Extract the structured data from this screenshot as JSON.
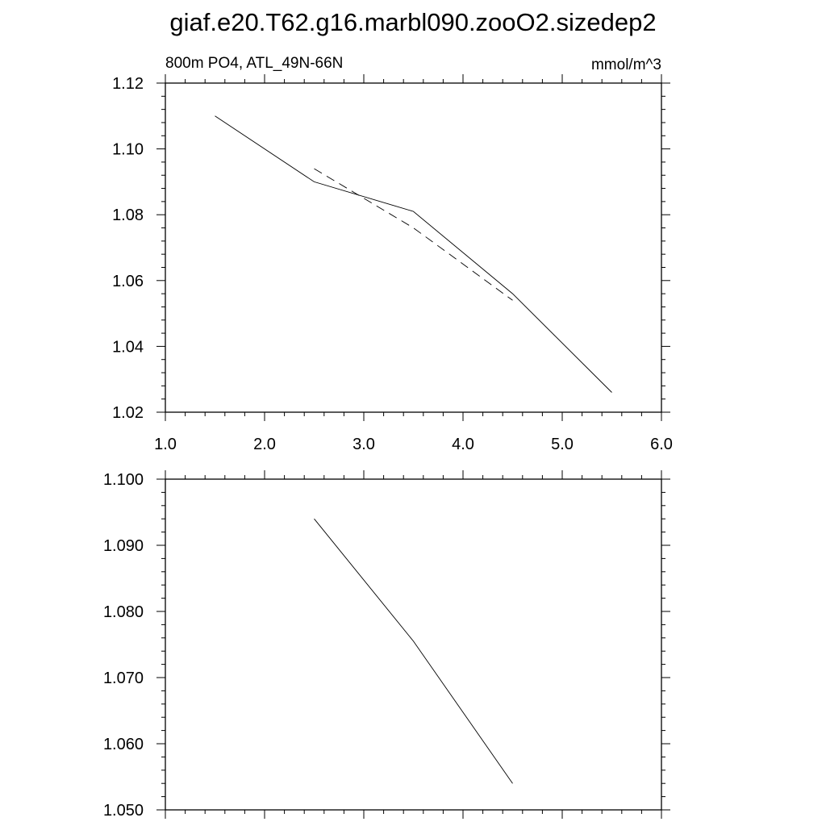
{
  "title": "giaf.e20.T62.g16.marbl090.zooO2.sizedep2",
  "chart_data": [
    {
      "type": "line",
      "left_label": "800m PO4, ATL_49N-66N",
      "right_label": "mmol/m^3",
      "xlim": [
        1.0,
        6.0
      ],
      "ylim": [
        1.02,
        1.12
      ],
      "x_ticks": [
        "1.0",
        "2.0",
        "3.0",
        "4.0",
        "5.0",
        "6.0"
      ],
      "y_ticks": [
        "1.02",
        "1.04",
        "1.06",
        "1.08",
        "1.10",
        "1.12"
      ],
      "series": [
        {
          "style": "solid",
          "x": [
            1.5,
            2.5,
            3.5,
            4.5,
            5.5
          ],
          "y": [
            1.11,
            1.09,
            1.081,
            1.056,
            1.026
          ]
        },
        {
          "style": "dashed",
          "x": [
            2.5,
            3.5,
            4.5
          ],
          "y": [
            1.094,
            1.076,
            1.054
          ]
        }
      ]
    },
    {
      "type": "line",
      "xlim": [
        1.0,
        6.0
      ],
      "ylim": [
        1.05,
        1.1
      ],
      "y_ticks": [
        "1.050",
        "1.060",
        "1.070",
        "1.080",
        "1.090",
        "1.100"
      ],
      "series": [
        {
          "style": "solid",
          "x": [
            2.5,
            3.5,
            4.5
          ],
          "y": [
            1.094,
            1.0755,
            1.054
          ]
        }
      ]
    }
  ]
}
